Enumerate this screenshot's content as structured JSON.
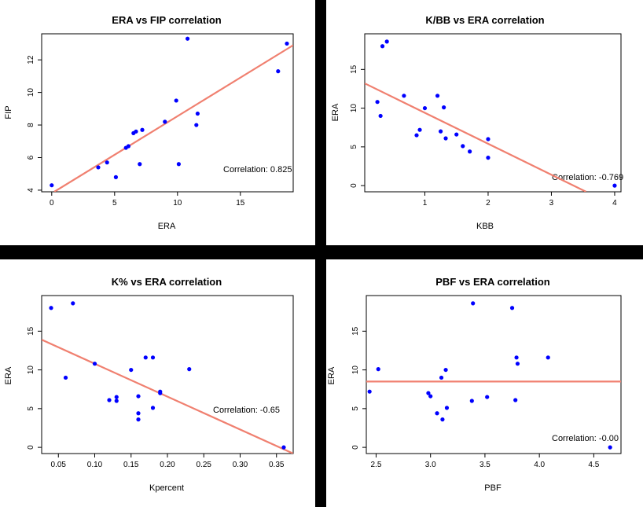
{
  "colors": {
    "point": "#0000ff",
    "fit_line": "#f08070",
    "divider": "#000000",
    "axis": "#000000"
  },
  "chart_data": [
    {
      "type": "scatter",
      "title": "ERA vs FIP correlation",
      "xlabel": "ERA",
      "ylabel": "FIP",
      "xlim": [
        -0.8,
        19.2
      ],
      "ylim": [
        3.9,
        13.6
      ],
      "xticks": [
        0,
        5,
        10,
        15
      ],
      "yticks": [
        4,
        6,
        8,
        10,
        12
      ],
      "points": [
        {
          "x": 0.0,
          "y": 4.3
        },
        {
          "x": 3.7,
          "y": 5.4
        },
        {
          "x": 4.4,
          "y": 5.7
        },
        {
          "x": 5.1,
          "y": 4.8
        },
        {
          "x": 5.9,
          "y": 6.6
        },
        {
          "x": 6.1,
          "y": 6.7
        },
        {
          "x": 6.5,
          "y": 7.5
        },
        {
          "x": 6.7,
          "y": 7.6
        },
        {
          "x": 7.0,
          "y": 5.6
        },
        {
          "x": 7.2,
          "y": 7.7
        },
        {
          "x": 9.0,
          "y": 8.2
        },
        {
          "x": 9.9,
          "y": 9.5
        },
        {
          "x": 10.1,
          "y": 5.6
        },
        {
          "x": 10.8,
          "y": 13.3
        },
        {
          "x": 11.5,
          "y": 8.0
        },
        {
          "x": 11.6,
          "y": 8.7
        },
        {
          "x": 18.0,
          "y": 11.3
        },
        {
          "x": 18.7,
          "y": 13.0
        }
      ],
      "fit_line": {
        "x1": 0.2,
        "y1": 3.9,
        "x2": 19.2,
        "y2": 12.9
      },
      "correlation_label": "Correlation:  0.825"
    },
    {
      "type": "scatter",
      "title": "K/BB vs ERA correlation",
      "xlabel": "KBB",
      "ylabel": "ERA",
      "xlim": [
        0.05,
        4.1
      ],
      "ylim": [
        -0.8,
        19.6
      ],
      "xticks": [
        1,
        2,
        3,
        4
      ],
      "yticks": [
        0,
        5,
        10,
        15
      ],
      "points": [
        {
          "x": 0.25,
          "y": 10.8
        },
        {
          "x": 0.3,
          "y": 9.0
        },
        {
          "x": 0.33,
          "y": 18.0
        },
        {
          "x": 0.4,
          "y": 18.6
        },
        {
          "x": 0.67,
          "y": 11.6
        },
        {
          "x": 0.87,
          "y": 6.5
        },
        {
          "x": 0.92,
          "y": 7.2
        },
        {
          "x": 1.0,
          "y": 10.0
        },
        {
          "x": 1.2,
          "y": 11.6
        },
        {
          "x": 1.25,
          "y": 7.0
        },
        {
          "x": 1.3,
          "y": 10.1
        },
        {
          "x": 1.33,
          "y": 6.1
        },
        {
          "x": 1.5,
          "y": 6.6
        },
        {
          "x": 1.6,
          "y": 5.1
        },
        {
          "x": 1.71,
          "y": 4.4
        },
        {
          "x": 2.0,
          "y": 6.0
        },
        {
          "x": 2.0,
          "y": 3.6
        },
        {
          "x": 4.0,
          "y": 0.0
        }
      ],
      "fit_line": {
        "x1": 0.05,
        "y1": 13.2,
        "x2": 3.55,
        "y2": -0.8
      },
      "correlation_label": "Correlation:  -0.769"
    },
    {
      "type": "scatter",
      "title": "K% vs ERA correlation",
      "xlabel": "Kpercent",
      "ylabel": "ERA",
      "xlim": [
        0.027,
        0.373
      ],
      "ylim": [
        -0.8,
        19.6
      ],
      "xticks": [
        0.05,
        0.1,
        0.15,
        0.2,
        0.25,
        0.3,
        0.35
      ],
      "xticklabels": [
        "0.05",
        "0.10",
        "0.15",
        "0.20",
        "0.25",
        "0.30",
        "0.35"
      ],
      "yticks": [
        0,
        5,
        10,
        15
      ],
      "points": [
        {
          "x": 0.04,
          "y": 18.0
        },
        {
          "x": 0.06,
          "y": 9.0
        },
        {
          "x": 0.07,
          "y": 18.6
        },
        {
          "x": 0.1,
          "y": 10.8
        },
        {
          "x": 0.12,
          "y": 6.1
        },
        {
          "x": 0.13,
          "y": 6.5
        },
        {
          "x": 0.13,
          "y": 6.0
        },
        {
          "x": 0.15,
          "y": 10.0
        },
        {
          "x": 0.16,
          "y": 6.6
        },
        {
          "x": 0.16,
          "y": 4.4
        },
        {
          "x": 0.16,
          "y": 3.6
        },
        {
          "x": 0.17,
          "y": 11.6
        },
        {
          "x": 0.18,
          "y": 11.6
        },
        {
          "x": 0.18,
          "y": 5.1
        },
        {
          "x": 0.19,
          "y": 7.2
        },
        {
          "x": 0.19,
          "y": 7.0
        },
        {
          "x": 0.23,
          "y": 10.1
        },
        {
          "x": 0.36,
          "y": 0.0
        }
      ],
      "fit_line": {
        "x1": 0.027,
        "y1": 13.9,
        "x2": 0.373,
        "y2": -0.8
      },
      "correlation_label": "Correlation:  -0.65"
    },
    {
      "type": "scatter",
      "title": "PBF vs ERA correlation",
      "xlabel": "PBF",
      "ylabel": "ERA",
      "xlim": [
        2.41,
        4.75
      ],
      "ylim": [
        -0.8,
        19.6
      ],
      "xticks": [
        2.5,
        3.0,
        3.5,
        4.0,
        4.5
      ],
      "xticklabels": [
        "2.5",
        "3.0",
        "3.5",
        "4.0",
        "4.5"
      ],
      "yticks": [
        0,
        5,
        10,
        15
      ],
      "points": [
        {
          "x": 2.44,
          "y": 7.2
        },
        {
          "x": 2.52,
          "y": 10.1
        },
        {
          "x": 2.98,
          "y": 7.0
        },
        {
          "x": 3.0,
          "y": 6.6
        },
        {
          "x": 3.06,
          "y": 4.4
        },
        {
          "x": 3.1,
          "y": 9.0
        },
        {
          "x": 3.11,
          "y": 3.6
        },
        {
          "x": 3.14,
          "y": 10.0
        },
        {
          "x": 3.15,
          "y": 5.1
        },
        {
          "x": 3.38,
          "y": 6.0
        },
        {
          "x": 3.39,
          "y": 18.6
        },
        {
          "x": 3.52,
          "y": 6.5
        },
        {
          "x": 3.75,
          "y": 18.0
        },
        {
          "x": 3.78,
          "y": 6.1
        },
        {
          "x": 3.79,
          "y": 11.6
        },
        {
          "x": 3.8,
          "y": 10.8
        },
        {
          "x": 4.08,
          "y": 11.6
        },
        {
          "x": 4.65,
          "y": 0.0
        }
      ],
      "fit_line": {
        "x1": 2.41,
        "y1": 8.5,
        "x2": 4.75,
        "y2": 8.5
      },
      "correlation_label": "Correlation:  -0.00"
    }
  ]
}
